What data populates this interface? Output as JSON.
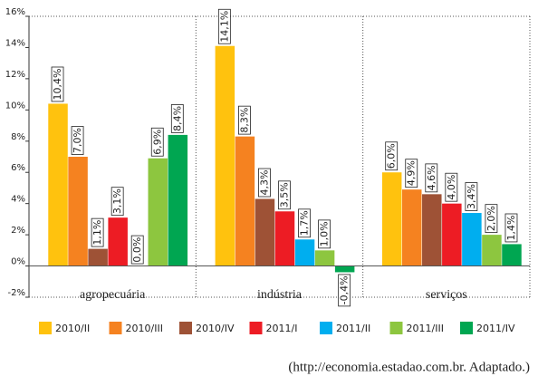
{
  "chart_data": {
    "type": "bar",
    "categories": [
      "agropecuária",
      "indústria",
      "serviços"
    ],
    "series": [
      {
        "name": "2010/II",
        "color": "#ffc20e",
        "values": [
          10.4,
          14.1,
          6.0
        ],
        "value_labels": [
          "10,4%",
          "14,1%",
          "6,0%"
        ]
      },
      {
        "name": "2010/III",
        "color": "#f58220",
        "values": [
          7.0,
          8.3,
          4.9
        ],
        "value_labels": [
          "7,0%",
          "8,3%",
          "4,9%"
        ]
      },
      {
        "name": "2010/IV",
        "color": "#9e5236",
        "values": [
          1.1,
          4.3,
          4.6
        ],
        "value_labels": [
          "1,1%",
          "4,3%",
          "4,6%"
        ]
      },
      {
        "name": "2011/I",
        "color": "#ed1c24",
        "values": [
          3.1,
          3.5,
          4.0
        ],
        "value_labels": [
          "3,1%",
          "3,5%",
          "4,0%"
        ]
      },
      {
        "name": "2011/II",
        "color": "#00aeef",
        "values": [
          0.0,
          1.7,
          3.4
        ],
        "value_labels": [
          "0,0%",
          "1,7%",
          "3,4%"
        ]
      },
      {
        "name": "2011/III",
        "color": "#8dc63f",
        "values": [
          6.9,
          1.0,
          2.0
        ],
        "value_labels": [
          "6,9%",
          "1,0%",
          "2,0%"
        ]
      },
      {
        "name": "2011/IV",
        "color": "#00a651",
        "values": [
          8.4,
          -0.4,
          1.4
        ],
        "value_labels": [
          "8,4%",
          "-0,4%",
          "1,4%"
        ]
      }
    ],
    "ylim": [
      -2,
      16
    ],
    "yticks": [
      {
        "value": -2,
        "label": "-2%"
      },
      {
        "value": 0,
        "label": "0%"
      },
      {
        "value": 2,
        "label": "2%"
      },
      {
        "value": 4,
        "label": "4%"
      },
      {
        "value": 6,
        "label": "6%"
      },
      {
        "value": 8,
        "label": "8%"
      },
      {
        "value": 10,
        "label": "10%"
      },
      {
        "value": 12,
        "label": "12%"
      },
      {
        "value": 14,
        "label": "14%"
      },
      {
        "value": 16,
        "label": "16%"
      }
    ],
    "source": "(http://economia.estadao.com.br. Adaptado.)"
  }
}
